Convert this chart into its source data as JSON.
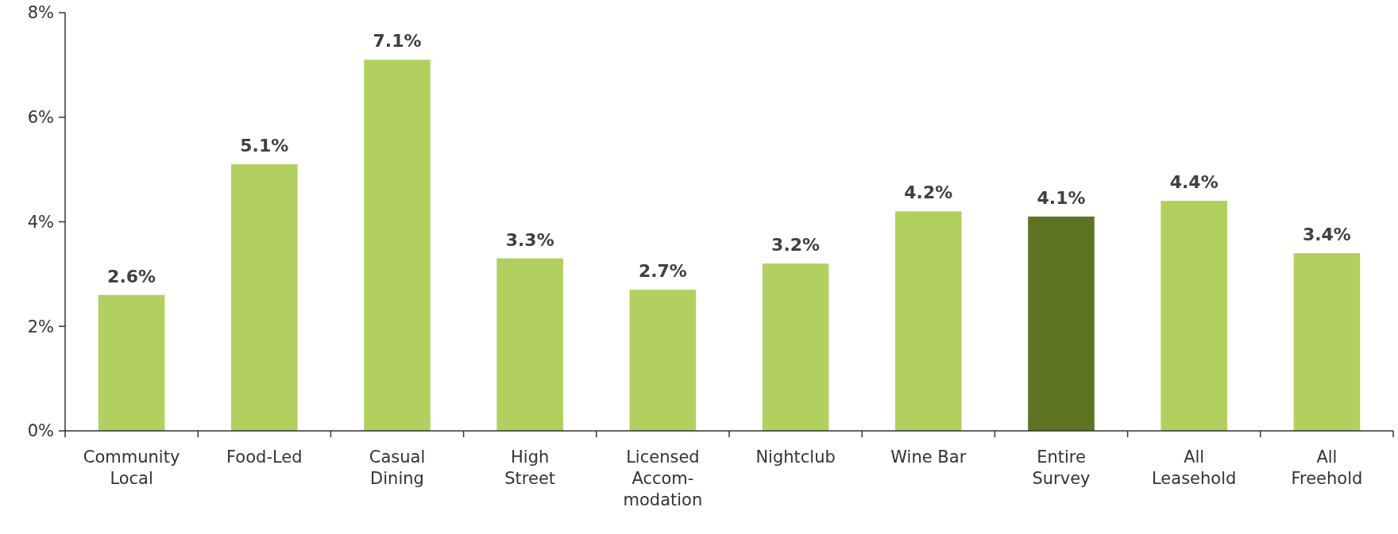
{
  "chart_data": {
    "type": "bar",
    "categories": [
      "Community\nLocal",
      "Food-Led",
      "Casual\nDining",
      "High\nStreet",
      "Licensed\nAccom-\nmodation",
      "Nightclub",
      "Wine Bar",
      "Entire\nSurvey",
      "All\nLeasehold",
      "All\nFreehold"
    ],
    "values": [
      2.6,
      5.1,
      7.1,
      3.3,
      2.7,
      3.2,
      4.2,
      4.1,
      4.4,
      3.4
    ],
    "value_labels": [
      "2.6%",
      "5.1%",
      "7.1%",
      "3.3%",
      "2.7%",
      "3.2%",
      "4.2%",
      "4.1%",
      "4.4%",
      "3.4%"
    ],
    "colors": [
      "#b1d05f",
      "#b1d05f",
      "#b1d05f",
      "#b1d05f",
      "#b1d05f",
      "#b1d05f",
      "#b1d05f",
      "#5e7322",
      "#b1d05f",
      "#b1d05f"
    ],
    "ylim": [
      0,
      8
    ],
    "yticks": [
      {
        "value": 0,
        "label": "0%"
      },
      {
        "value": 2,
        "label": "2%"
      },
      {
        "value": 4,
        "label": "4%"
      },
      {
        "value": 6,
        "label": "6%"
      },
      {
        "value": 8,
        "label": "8%"
      }
    ],
    "grid": false
  }
}
